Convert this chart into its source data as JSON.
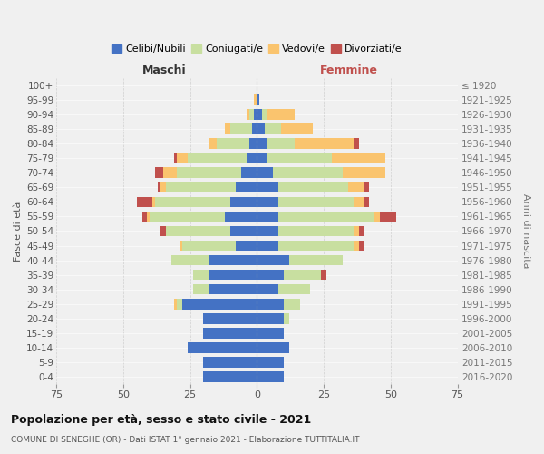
{
  "age_groups": [
    "100+",
    "95-99",
    "90-94",
    "85-89",
    "80-84",
    "75-79",
    "70-74",
    "65-69",
    "60-64",
    "55-59",
    "50-54",
    "45-49",
    "40-44",
    "35-39",
    "30-34",
    "25-29",
    "20-24",
    "15-19",
    "10-14",
    "5-9",
    "0-4"
  ],
  "birth_years": [
    "≤ 1920",
    "1921-1925",
    "1926-1930",
    "1931-1935",
    "1936-1940",
    "1941-1945",
    "1946-1950",
    "1951-1955",
    "1956-1960",
    "1961-1965",
    "1966-1970",
    "1971-1975",
    "1976-1980",
    "1981-1985",
    "1986-1990",
    "1991-1995",
    "1996-2000",
    "2001-2005",
    "2006-2010",
    "2011-2015",
    "2016-2020"
  ],
  "maschi": {
    "celibe": [
      0,
      0,
      1,
      2,
      3,
      4,
      6,
      8,
      10,
      12,
      10,
      8,
      18,
      18,
      18,
      28,
      20,
      20,
      26,
      20,
      20
    ],
    "coniugato": [
      0,
      0,
      2,
      8,
      12,
      22,
      24,
      26,
      28,
      28,
      24,
      20,
      14,
      6,
      6,
      2,
      0,
      0,
      0,
      0,
      0
    ],
    "vedovo": [
      0,
      1,
      1,
      2,
      3,
      4,
      5,
      2,
      1,
      1,
      0,
      1,
      0,
      0,
      0,
      1,
      0,
      0,
      0,
      0,
      0
    ],
    "divorziato": [
      0,
      0,
      0,
      0,
      0,
      1,
      3,
      1,
      6,
      2,
      2,
      0,
      0,
      0,
      0,
      0,
      0,
      0,
      0,
      0,
      0
    ]
  },
  "femmine": {
    "nubile": [
      0,
      1,
      2,
      3,
      4,
      4,
      6,
      8,
      8,
      8,
      8,
      8,
      12,
      10,
      8,
      10,
      10,
      10,
      12,
      10,
      10
    ],
    "coniugata": [
      0,
      0,
      2,
      6,
      10,
      24,
      26,
      26,
      28,
      36,
      28,
      28,
      20,
      14,
      12,
      6,
      2,
      0,
      0,
      0,
      0
    ],
    "vedova": [
      0,
      0,
      10,
      12,
      22,
      20,
      16,
      6,
      4,
      2,
      2,
      2,
      0,
      0,
      0,
      0,
      0,
      0,
      0,
      0,
      0
    ],
    "divorziata": [
      0,
      0,
      0,
      0,
      2,
      0,
      0,
      2,
      2,
      6,
      2,
      2,
      0,
      2,
      0,
      0,
      0,
      0,
      0,
      0,
      0
    ]
  },
  "colors": {
    "celibe": "#4472C4",
    "coniugato": "#C8DFA0",
    "vedovo": "#FAC46E",
    "divorziato": "#C0504D"
  },
  "xlim": 75,
  "title": "Popolazione per età, sesso e stato civile - 2021",
  "subtitle": "COMUNE DI SENEGHE (OR) - Dati ISTAT 1° gennaio 2021 - Elaborazione TUTTITALIA.IT",
  "ylabel_left": "Fasce di età",
  "ylabel_right": "Anni di nascita",
  "header_maschi": "Maschi",
  "header_femmine": "Femmine",
  "legend_labels": [
    "Celibi/Nubili",
    "Coniugati/e",
    "Vedovi/e",
    "Divorziati/e"
  ],
  "bg_color": "#f0f0f0",
  "grid_color": "#cccccc",
  "header_maschi_color": "#333333",
  "header_femmine_color": "#C0504D"
}
